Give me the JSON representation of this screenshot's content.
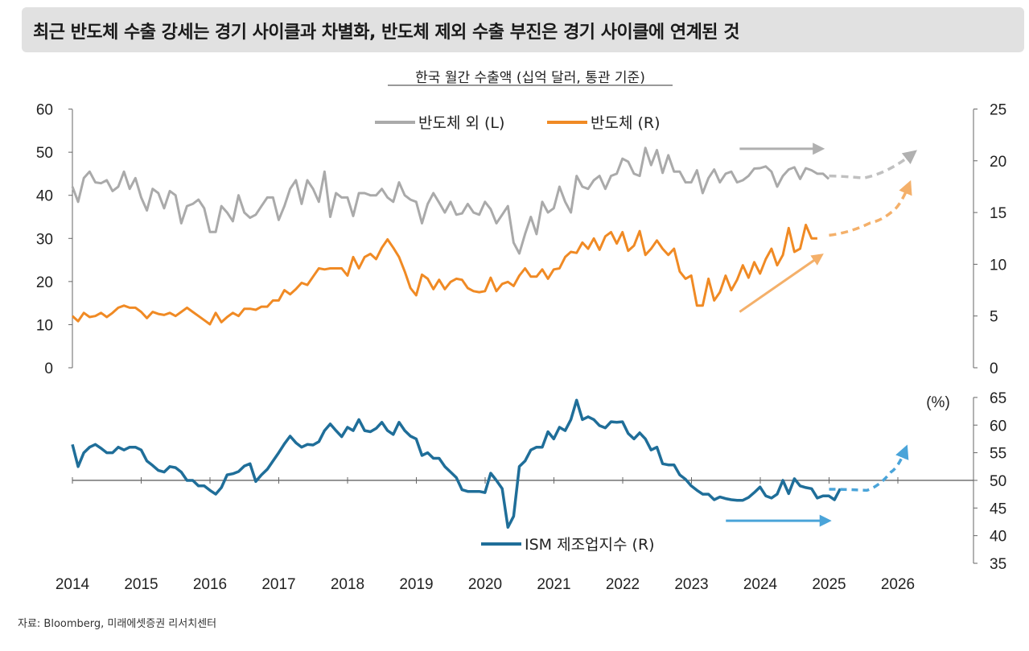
{
  "title": "최근 반도체 수출 강세는 경기 사이클과 차별화, 반도체 제외 수출 부진은 경기 사이클에 연계된 것",
  "source": "자료: Bloomberg, 미래에셋증권 리서치센터",
  "colors": {
    "gray": "#aaaaaa",
    "orange": "#f08a24",
    "orange_light": "#f4b06a",
    "blue": "#1f6e99",
    "blue_light": "#4aa4d9",
    "axis": "#666666"
  },
  "chart_data": [
    {
      "type": "line",
      "subtitle": "한국 월간 수출액 (십억 달러, 통관 기준)",
      "left_axis": {
        "ylim": [
          0,
          60
        ],
        "ticks": [
          "0",
          "10",
          "20",
          "30",
          "40",
          "50",
          "60"
        ]
      },
      "right_axis": {
        "ylim": [
          0,
          25
        ],
        "ticks": [
          "0",
          "5",
          "10",
          "15",
          "20",
          "25"
        ]
      },
      "legend": [
        "반도체 외 (L)",
        "반도체 (R)"
      ],
      "x_start": 2014.0,
      "x_step": 0.0833,
      "series": [
        {
          "name": "반도체 외 (L)",
          "axis": "left",
          "values": [
            42,
            38.5,
            44,
            45.5,
            43,
            42.8,
            43.5,
            41,
            42,
            45.5,
            41.5,
            44,
            39.5,
            36.5,
            41.5,
            40.5,
            37,
            41,
            40,
            33.5,
            37.5,
            38,
            39,
            37,
            31.5,
            31.5,
            37.5,
            36,
            34,
            40,
            36,
            34.8,
            35.5,
            37.5,
            39.5,
            39.5,
            34.3,
            37.5,
            41.5,
            43.5,
            38,
            43.5,
            41.5,
            38.5,
            45.5,
            35,
            40.5,
            39.5,
            39.5,
            35.2,
            40.5,
            40.5,
            40,
            40,
            41.5,
            39.5,
            38.5,
            43,
            40,
            39,
            38.5,
            33.5,
            38,
            40.5,
            38.3,
            36,
            38.5,
            35.5,
            35.8,
            38,
            36,
            35.5,
            38.5,
            36.8,
            33.5,
            35.5,
            37.5,
            29,
            26.5,
            31,
            35,
            31,
            38.5,
            36,
            37,
            42,
            38.5,
            36,
            44.5,
            42,
            41.5,
            43.5,
            44.5,
            41.5,
            44.5,
            45,
            48.5,
            47.8,
            45,
            44.5,
            51,
            47,
            50.5,
            45.2,
            49.3,
            45.5,
            45.5,
            43,
            43,
            45.8,
            40.5,
            44,
            46,
            43,
            45,
            45.5,
            43,
            43.5,
            44.5,
            46.2,
            46.3,
            46.7,
            45.5,
            42,
            44.5,
            46,
            46.5,
            43.8,
            46.3,
            45.8,
            45,
            45,
            43.8
          ]
        },
        {
          "name": "반도체 (R)",
          "axis": "right",
          "values": [
            5,
            4.5,
            5.3,
            4.9,
            5,
            5.3,
            4.9,
            5.3,
            5.8,
            6,
            5.8,
            5.8,
            5.4,
            4.8,
            5.4,
            5.2,
            5.1,
            5.3,
            5,
            5.4,
            5.8,
            5.4,
            5,
            4.6,
            4.2,
            5.3,
            4.4,
            4.9,
            5.3,
            5,
            5.7,
            5.7,
            5.6,
            5.9,
            5.9,
            6.5,
            6.5,
            7.5,
            7.1,
            7.6,
            8.2,
            8,
            8.8,
            9.6,
            9.5,
            9.6,
            9.6,
            9.6,
            8.9,
            10.7,
            9.6,
            10.7,
            11,
            10.5,
            11.6,
            12.4,
            11.6,
            10.7,
            9.3,
            7.7,
            7,
            9,
            8.6,
            7.6,
            8.5,
            7.6,
            8.3,
            8.6,
            8.5,
            7.7,
            7.4,
            7.3,
            7.4,
            8.7,
            7.4,
            8.1,
            8.3,
            7.9,
            8.9,
            9.6,
            8.8,
            8.8,
            9.5,
            8.6,
            9.5,
            9.6,
            10.7,
            11.2,
            11.1,
            12.1,
            11.5,
            12.5,
            11.4,
            12.7,
            13.1,
            12,
            13.1,
            11.3,
            11.8,
            13.2,
            10.9,
            11.5,
            12.3,
            11.5,
            10.9,
            11.5,
            9.3,
            8.6,
            8.9,
            6,
            6,
            8.6,
            6.5,
            7.3,
            8.9,
            7.5,
            8.5,
            9.9,
            8.7,
            10.2,
            9.1,
            10.5,
            11.5,
            9.9,
            10.9,
            13.5,
            11.2,
            11.5,
            13.8,
            12.5,
            12.5
          ]
        }
      ],
      "projections": [
        {
          "series": "반도체 외 (L)",
          "axis": "left",
          "x": [
            2025.0,
            2025.5,
            2026.2
          ],
          "y": [
            44.5,
            44.0,
            49.5
          ]
        },
        {
          "series": "반도체 (R)",
          "axis": "right",
          "x": [
            2025.0,
            2025.6,
            2025.9,
            2026.15
          ],
          "y": [
            12.8,
            14.0,
            15.0,
            17.5
          ]
        }
      ],
      "arrows": [
        {
          "color": "gray",
          "x": [
            2023.7,
            2024.85
          ],
          "y": [
            50.8,
            50.8
          ],
          "axis": "left"
        },
        {
          "color": "orange",
          "x": [
            2023.7,
            2024.85
          ],
          "y": [
            5.4,
            10.7
          ],
          "axis": "right"
        }
      ]
    },
    {
      "type": "line",
      "ylabel": "(%)",
      "ylim": [
        35,
        65
      ],
      "ticks": [
        "35",
        "40",
        "45",
        "50",
        "55",
        "60",
        "65"
      ],
      "reference_line": 50,
      "legend": [
        "ISM 제조업지수 (R)"
      ],
      "x_ticks": [
        "2014",
        "2015",
        "2016",
        "2017",
        "2018",
        "2019",
        "2020",
        "2021",
        "2022",
        "2023",
        "2024",
        "2025",
        "2026"
      ],
      "series": [
        {
          "name": "ISM 제조업지수 (R)",
          "values": [
            56.5,
            52.5,
            55,
            56,
            56.5,
            55.8,
            55,
            55,
            56,
            55.5,
            56,
            56,
            55.5,
            53.5,
            52.7,
            51.8,
            51.5,
            52.5,
            52.3,
            51.5,
            50,
            50,
            49,
            49,
            48.2,
            47.5,
            48.7,
            51,
            51.2,
            51.6,
            52.6,
            53,
            49.8,
            51,
            52,
            53.5,
            55,
            56.6,
            58,
            56.8,
            56,
            56.5,
            56.4,
            57,
            59,
            60.2,
            59,
            57.9,
            59.6,
            59,
            61,
            59,
            58.8,
            59.4,
            60.5,
            59,
            58.3,
            60.5,
            59,
            58,
            57.5,
            54.5,
            55,
            54,
            54,
            52.5,
            51.5,
            50.5,
            48.3,
            48,
            48,
            48,
            47.8,
            51.3,
            50,
            48.5,
            41.5,
            43.5,
            52.5,
            53.5,
            55.5,
            56,
            56,
            58.8,
            57.5,
            59.6,
            59,
            61,
            64.5,
            61,
            61.5,
            61,
            59.9,
            59.5,
            60.6,
            60.5,
            60.6,
            58.5,
            57.5,
            58.6,
            57.5,
            55.5,
            56,
            53,
            52.8,
            52.8,
            51,
            50.2,
            49,
            48.2,
            47.5,
            47.5,
            46.5,
            47,
            46.7,
            46.5,
            46.4,
            46.4,
            46.9,
            47.8,
            48.8,
            47.2,
            46.8,
            47.5,
            50,
            47.6,
            50.3,
            49,
            48.7,
            48.5,
            46.8,
            47.2,
            47.2,
            46.5,
            48.5
          ]
        }
      ],
      "projection": {
        "x": [
          2025.0,
          2025.55,
          2025.9,
          2026.1
        ],
        "y": [
          48.4,
          48.2,
          51.5,
          55.3
        ]
      },
      "arrow": {
        "color": "blue",
        "x": [
          2023.5,
          2024.95
        ],
        "y": [
          42.7,
          42.7
        ]
      }
    }
  ]
}
